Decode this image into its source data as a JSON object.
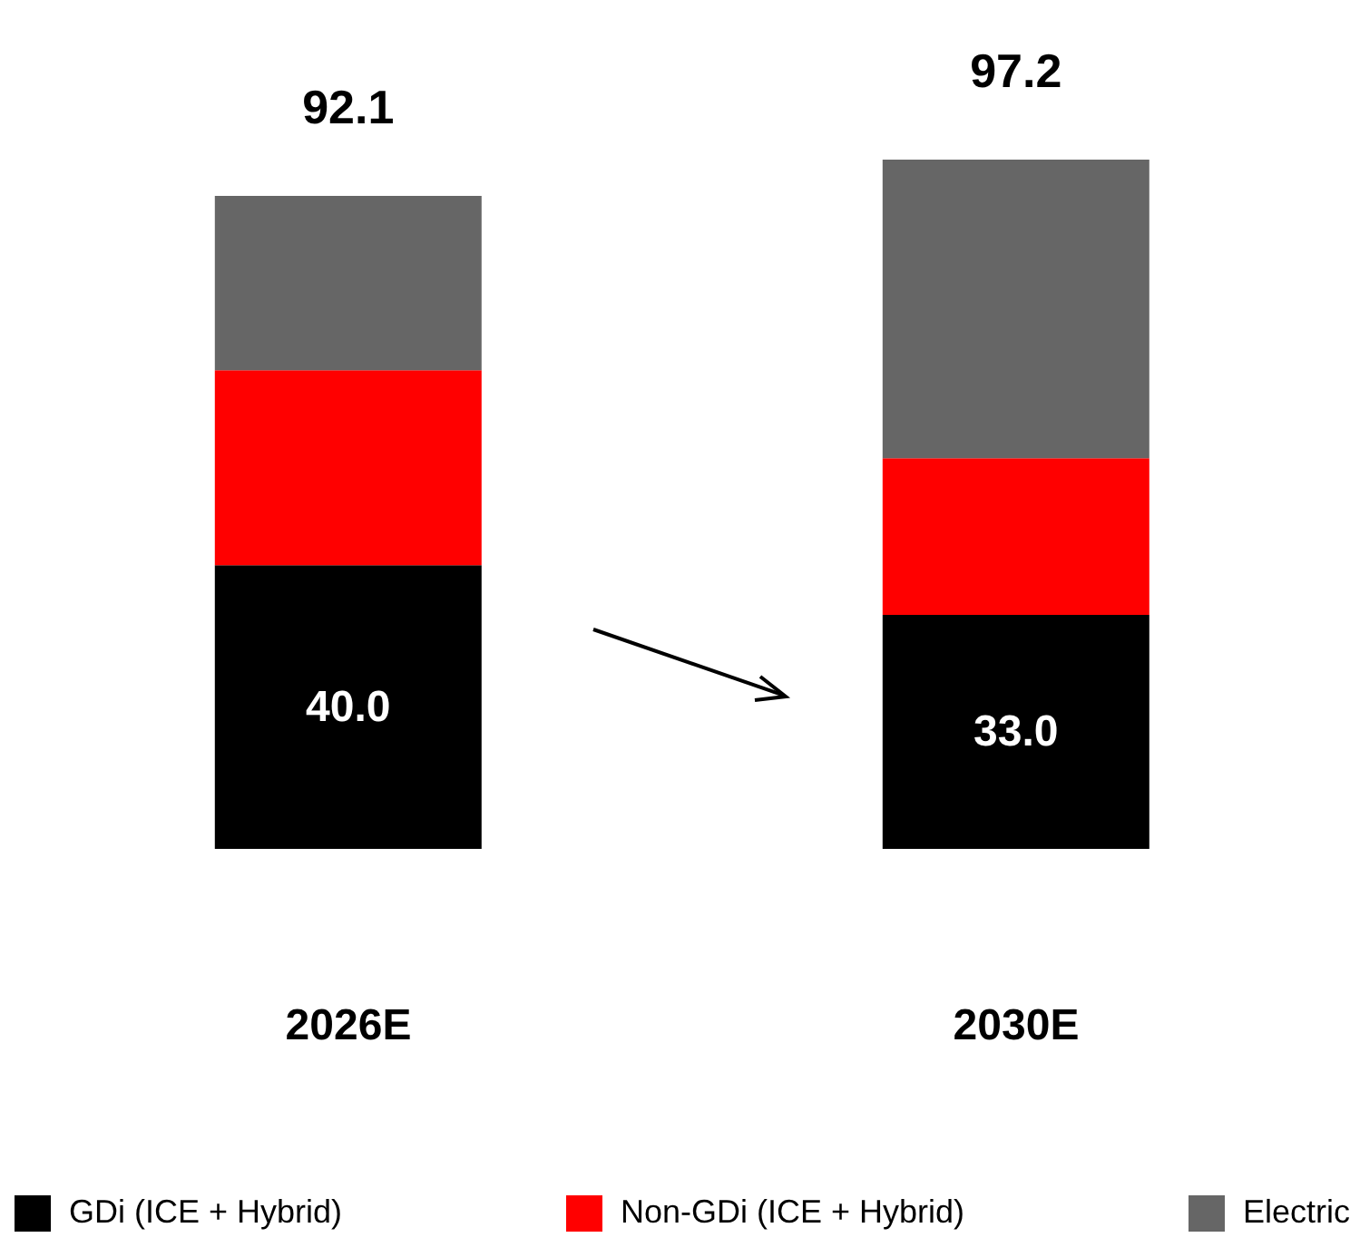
{
  "chart_data": {
    "type": "bar",
    "stacked": true,
    "categories": [
      "2026E",
      "2030E"
    ],
    "series": [
      {
        "name": "GDi (ICE + Hybrid)",
        "color": "#000000",
        "values": [
          40.0,
          33.0
        ],
        "value_labels": [
          "40.0",
          "33.0"
        ]
      },
      {
        "name": "Non-GDi (ICE + Hybrid)",
        "color": "#ff0000",
        "values": [
          27.5,
          22.1
        ],
        "value_labels": [
          null,
          null
        ]
      },
      {
        "name": "Electric",
        "color": "#666666",
        "values": [
          24.6,
          42.1
        ],
        "value_labels": [
          null,
          null
        ]
      }
    ],
    "totals": [
      "92.1",
      "97.2"
    ],
    "legend": "bottom",
    "grid": false
  }
}
